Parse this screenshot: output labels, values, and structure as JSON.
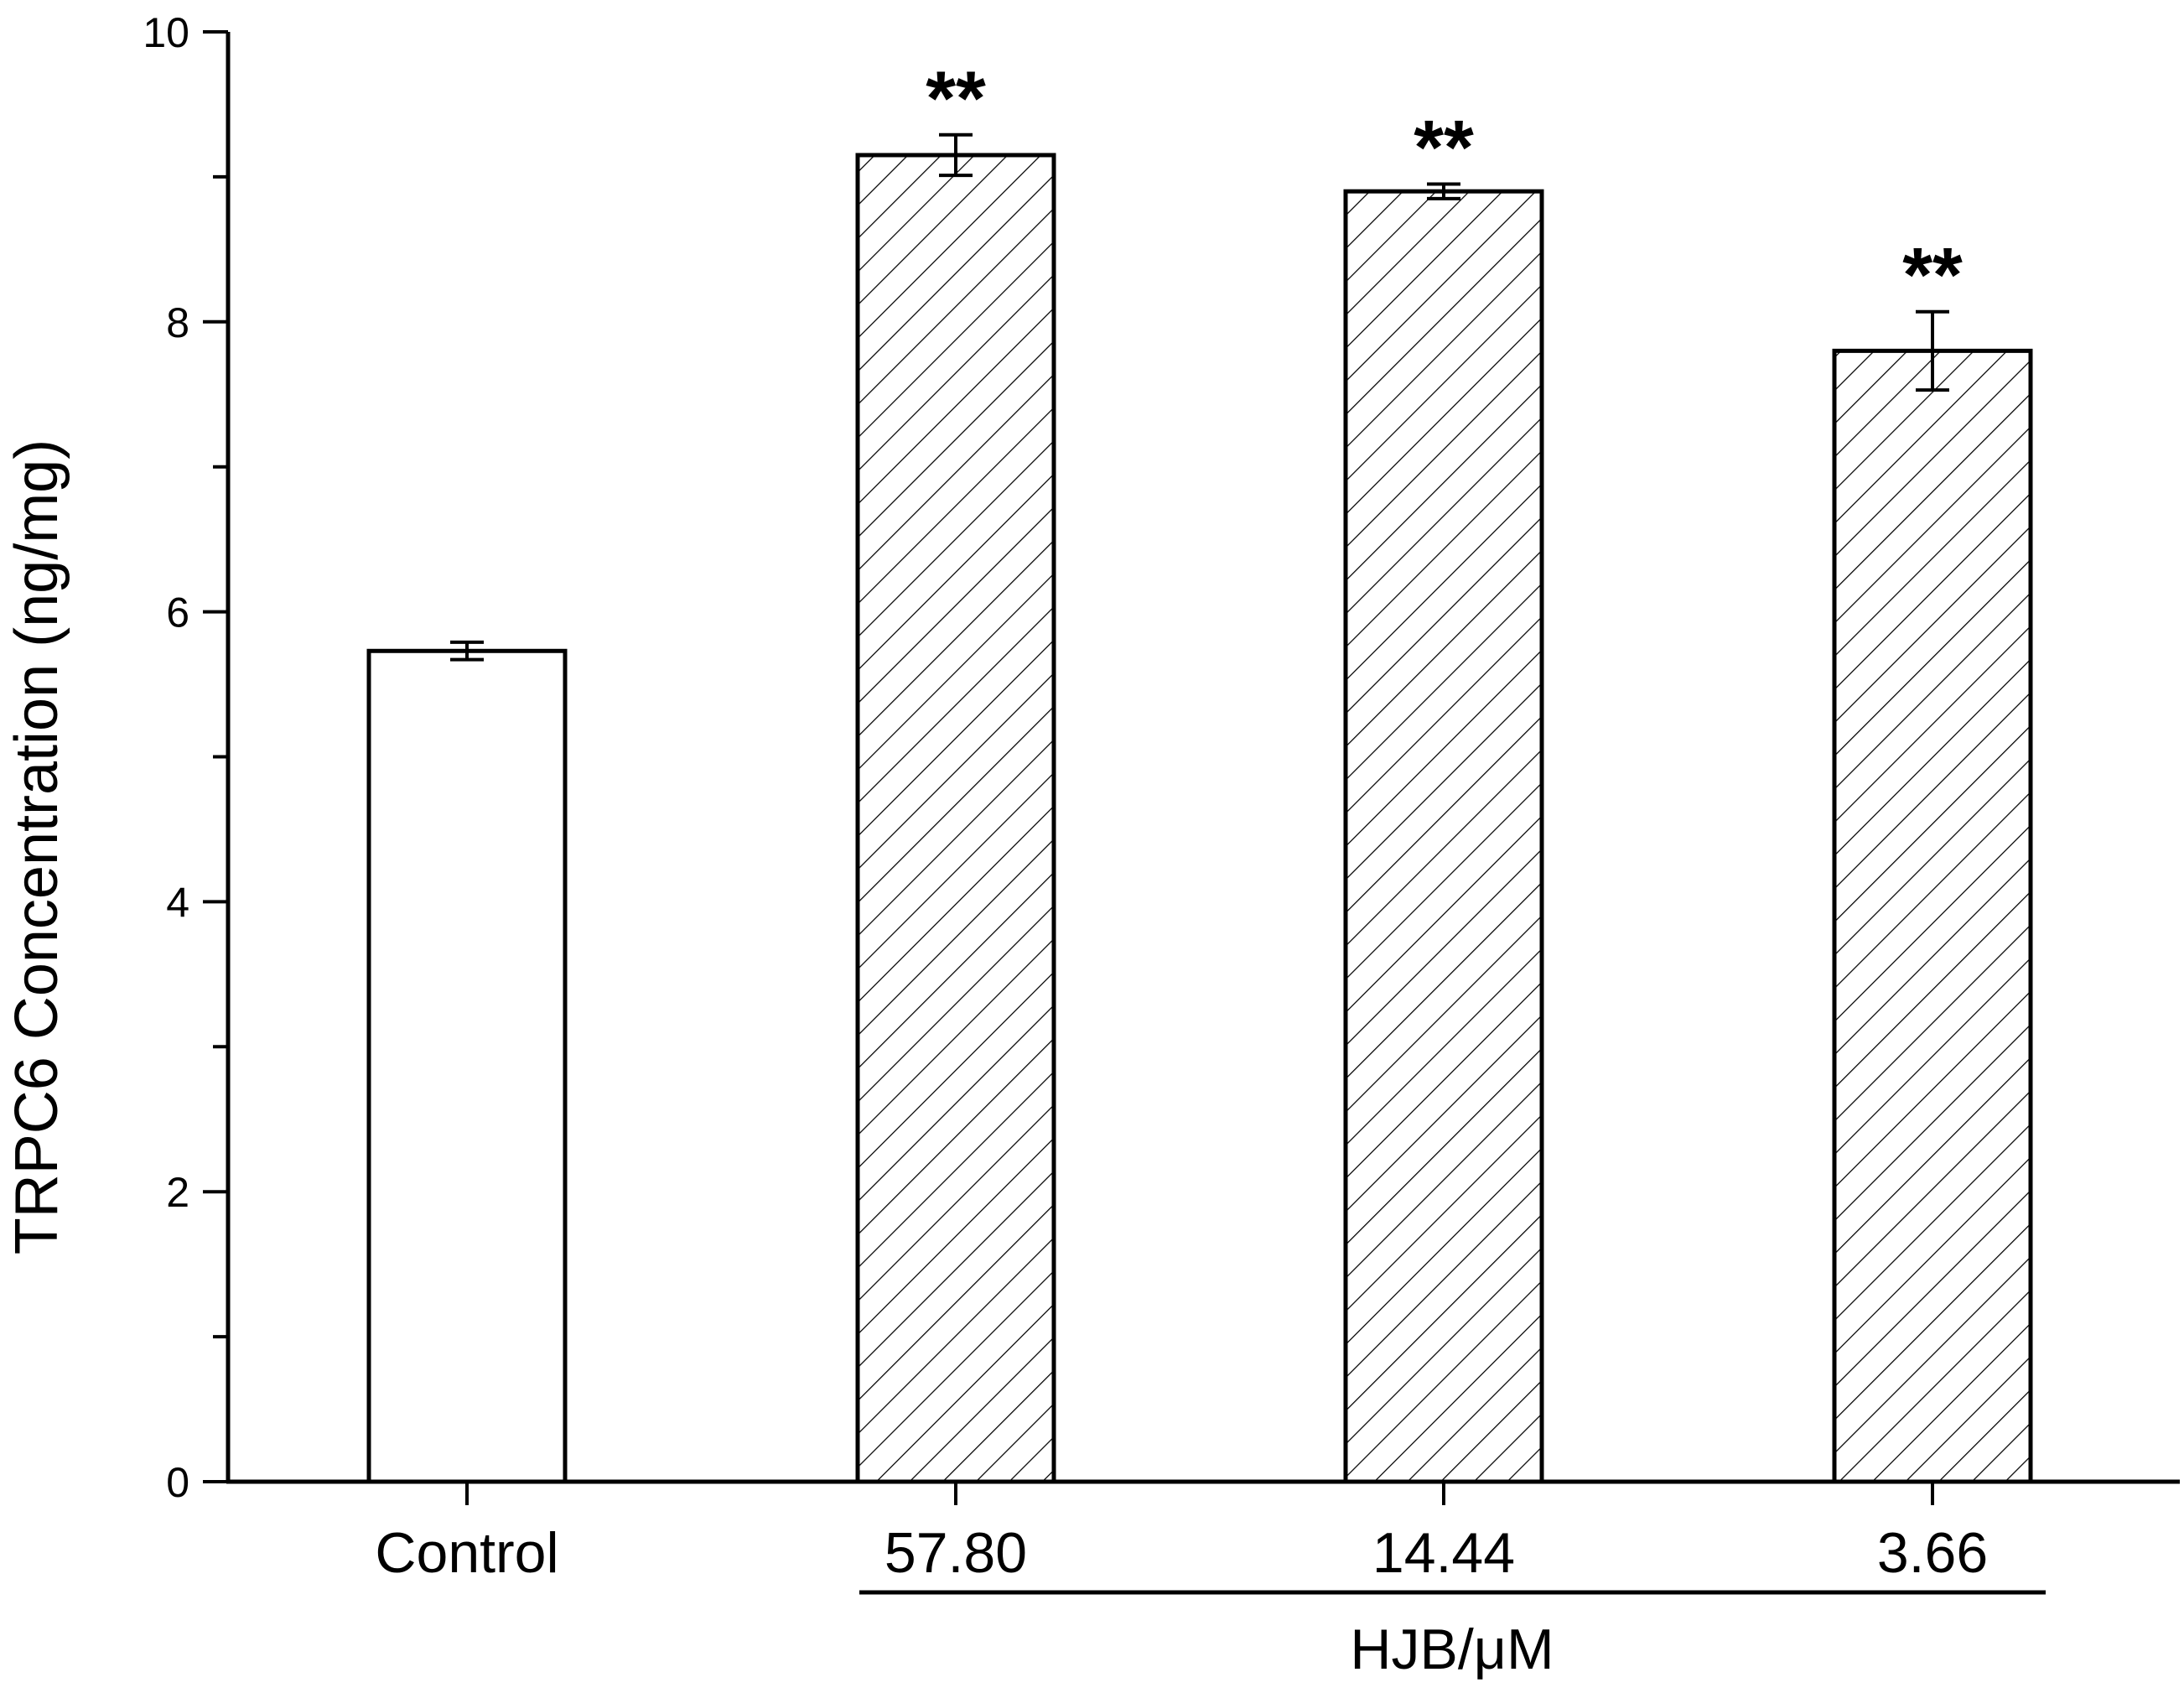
{
  "chart_data": {
    "type": "bar",
    "title": "",
    "xlabel": "",
    "ylabel": "TRPC6 Concentration (ng/mg)",
    "ylim": [
      0,
      10
    ],
    "yticks": [
      0,
      2,
      4,
      6,
      8,
      10
    ],
    "grid": false,
    "legend": "none",
    "categories": [
      "Control",
      "57.80",
      "14.44",
      "3.66"
    ],
    "values": [
      5.73,
      9.15,
      8.9,
      7.8
    ],
    "errors": [
      0.06,
      0.14,
      0.05,
      0.27
    ],
    "significance": [
      "",
      "**",
      "**",
      "**"
    ],
    "fill": [
      "plain",
      "hatched",
      "hatched",
      "hatched"
    ],
    "group_label": "HJB/μM",
    "colors": {
      "bar_fill": "#ffffff",
      "stroke": "#000000"
    }
  }
}
